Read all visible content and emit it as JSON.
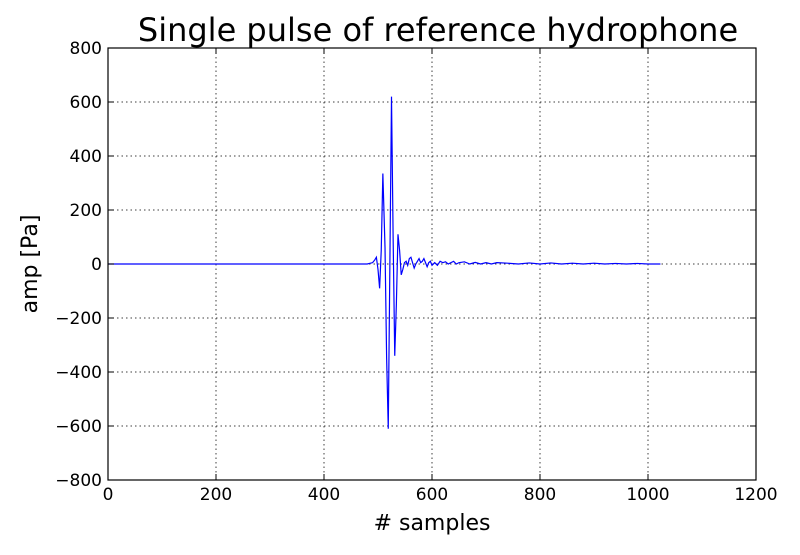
{
  "chart_data": {
    "type": "line",
    "title": "Single pulse of reference hydrophone",
    "xlabel": "# samples",
    "ylabel": "amp [Pa]",
    "xlim": [
      0,
      1200
    ],
    "ylim": [
      -800,
      800
    ],
    "x_ticks": [
      0,
      200,
      400,
      600,
      800,
      1000,
      1200
    ],
    "y_ticks": [
      -800,
      -600,
      -400,
      -200,
      0,
      200,
      400,
      600,
      800
    ],
    "x_tick_labels": [
      "0",
      "200",
      "400",
      "600",
      "800",
      "1000",
      "1200"
    ],
    "y_tick_labels": [
      "−800",
      "−600",
      "−400",
      "−200",
      "0",
      "200",
      "400",
      "600",
      "800"
    ],
    "grid": true,
    "series": [
      {
        "color": "#0000ff",
        "x": [
          0,
          480,
          490,
          494,
          497,
          500,
          503,
          506,
          509,
          513,
          516,
          519,
          522,
          525,
          528,
          531,
          534,
          537,
          540,
          543,
          546,
          549,
          552,
          555,
          558,
          561,
          564,
          567,
          570,
          573,
          576,
          579,
          582,
          585,
          588,
          591,
          594,
          597,
          600,
          605,
          610,
          615,
          620,
          625,
          630,
          635,
          640,
          645,
          650,
          660,
          670,
          680,
          690,
          700,
          710,
          720,
          740,
          760,
          780,
          800,
          820,
          840,
          860,
          880,
          900,
          920,
          940,
          960,
          980,
          1000,
          1023
        ],
        "y": [
          0,
          0,
          5,
          15,
          25,
          -20,
          -90,
          50,
          335,
          60,
          -350,
          -610,
          0,
          620,
          100,
          -340,
          -150,
          110,
          50,
          -40,
          -20,
          5,
          10,
          -5,
          20,
          25,
          5,
          -15,
          0,
          10,
          20,
          5,
          10,
          20,
          5,
          -10,
          5,
          10,
          -5,
          5,
          -5,
          10,
          5,
          8,
          0,
          5,
          10,
          0,
          5,
          8,
          0,
          6,
          0,
          5,
          0,
          5,
          3,
          0,
          4,
          0,
          4,
          0,
          3,
          0,
          3,
          0,
          2,
          0,
          2,
          0,
          0
        ]
      }
    ]
  }
}
